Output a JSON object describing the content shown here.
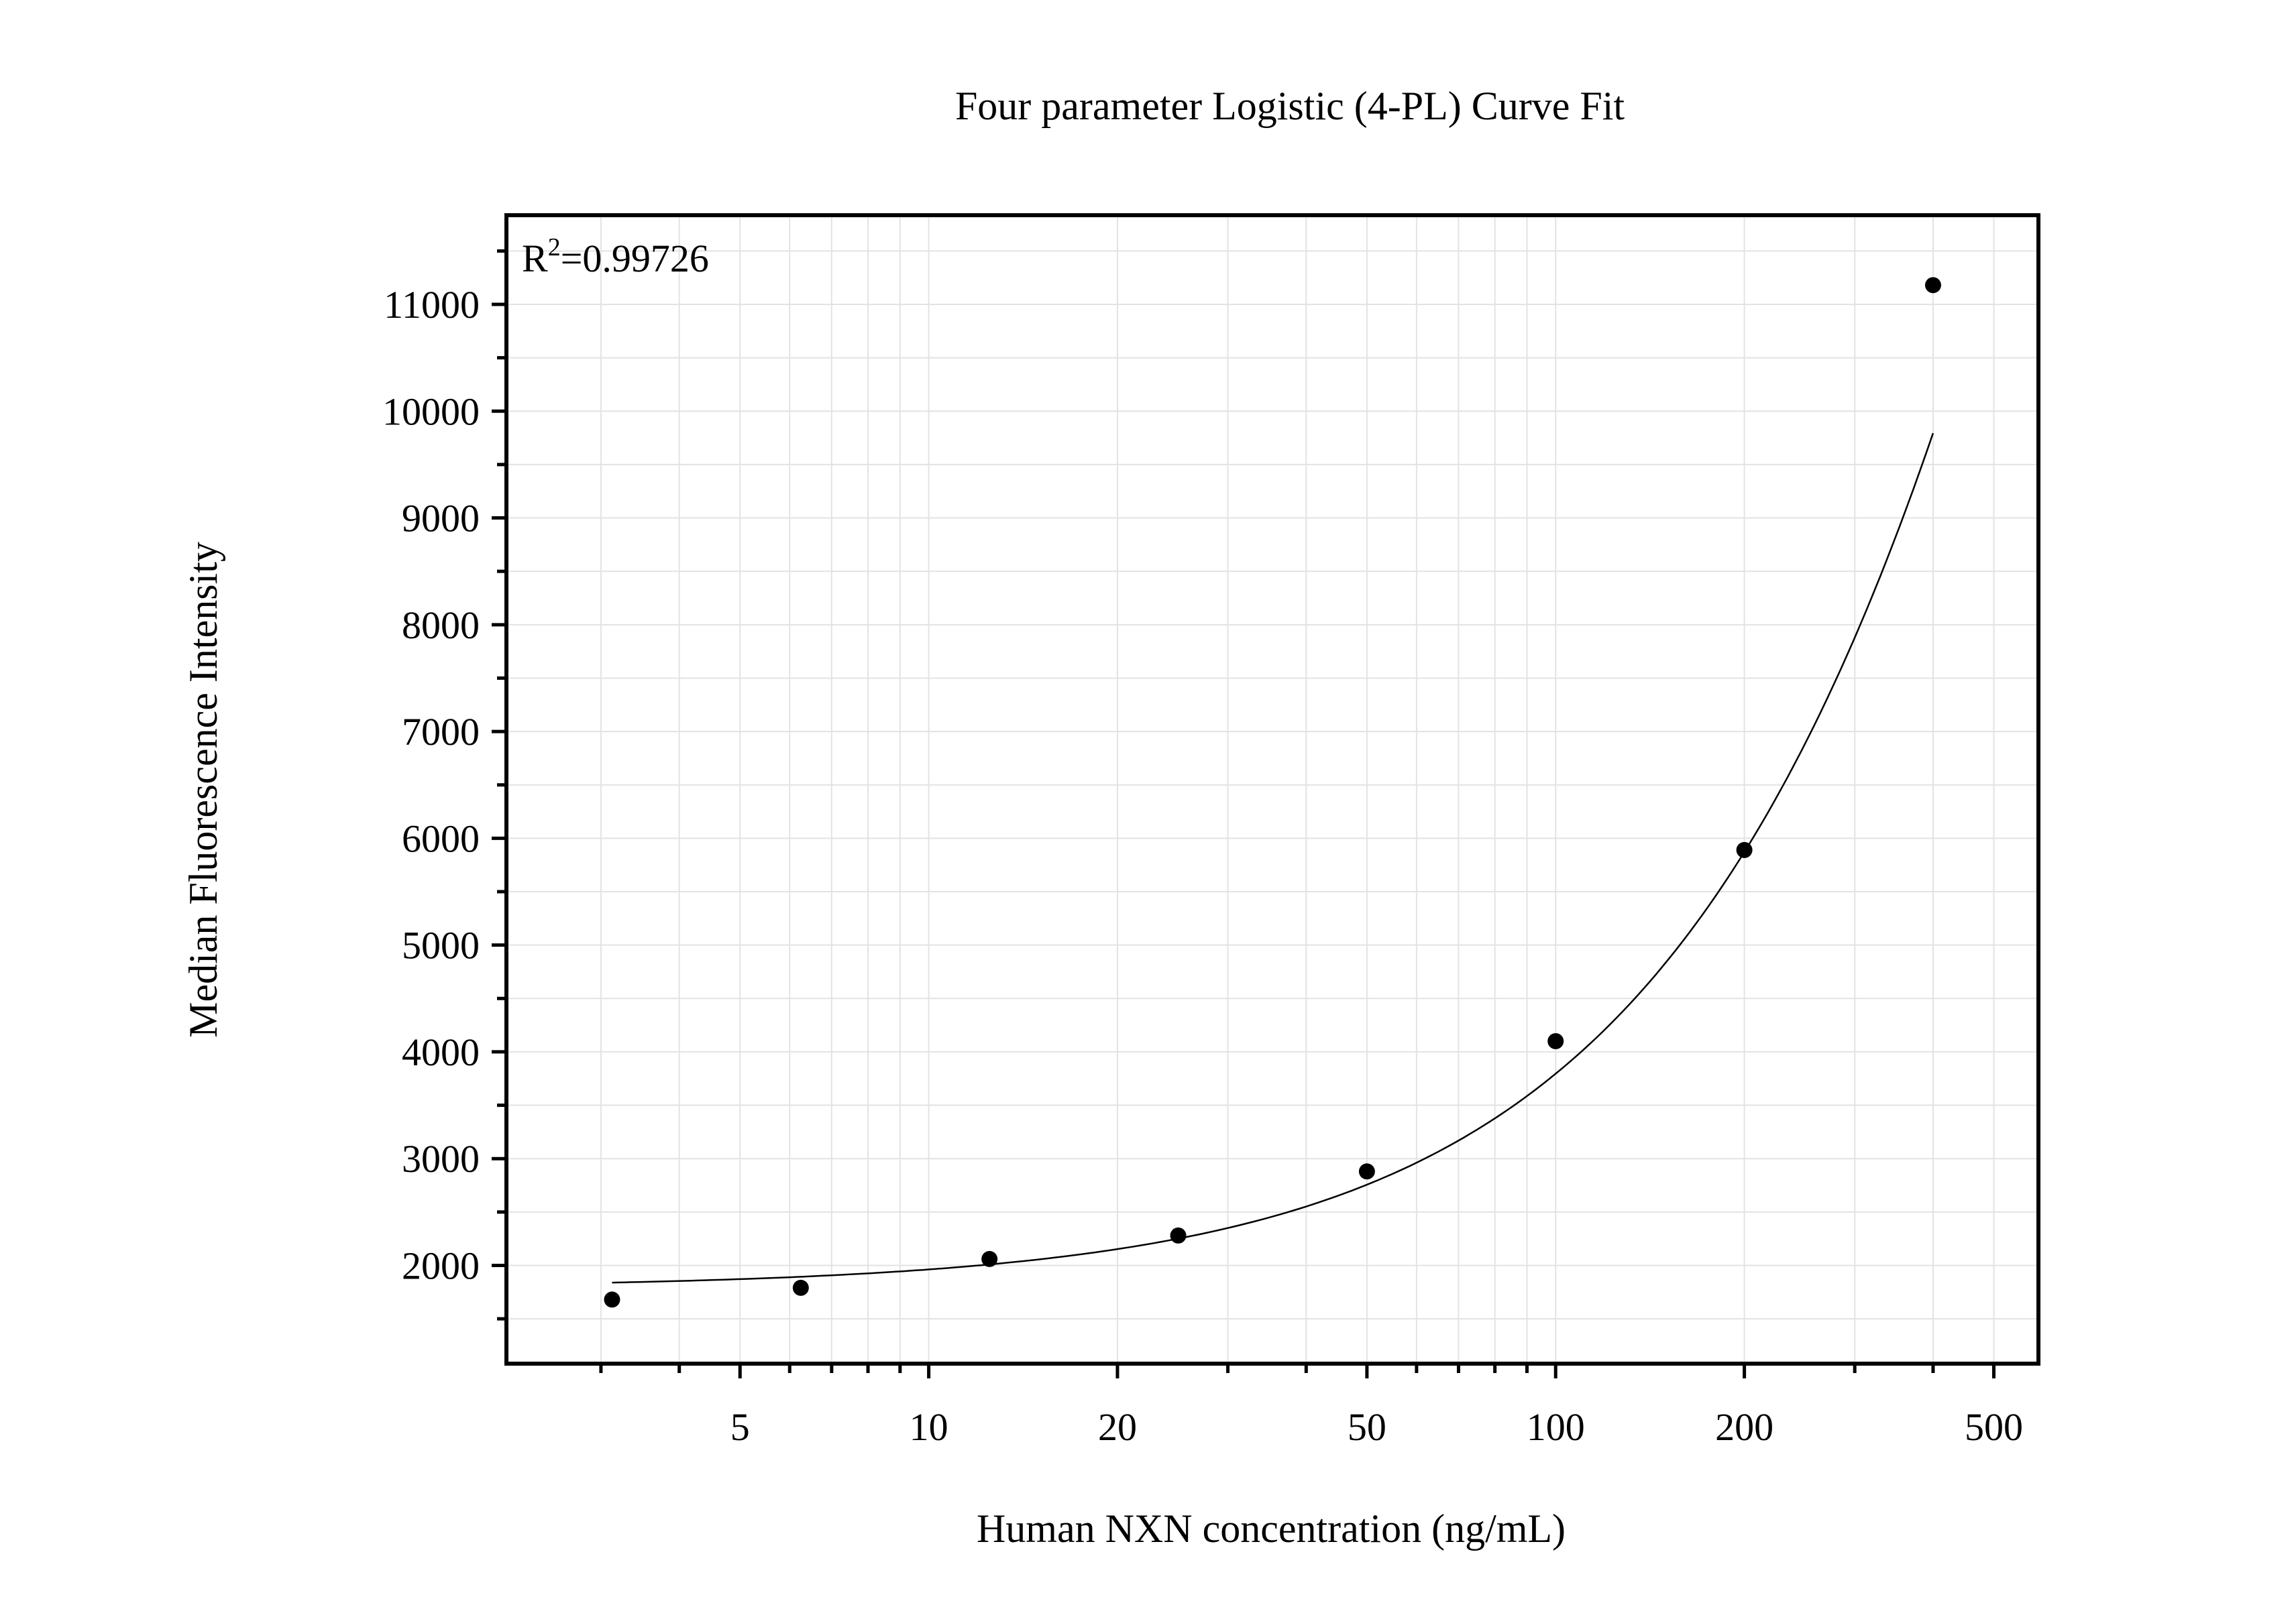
{
  "chart_data": {
    "type": "scatter",
    "title": "Four parameter Logistic (4-PL) Curve Fit",
    "xlabel": "Human NXN concentration (ng/mL)",
    "ylabel": "Median Fluorescence Intensity",
    "x_scale": "log",
    "xlim": [
      2.12,
      589
    ],
    "ylim": [
      1080,
      11835
    ],
    "x_ticks": [
      5,
      10,
      20,
      50,
      100,
      200,
      500
    ],
    "x_tick_labels": [
      "5",
      "10",
      "20",
      "50",
      "100",
      "200",
      "500"
    ],
    "y_ticks": [
      2000,
      3000,
      4000,
      5000,
      6000,
      7000,
      8000,
      9000,
      10000,
      11000
    ],
    "y_tick_labels": [
      "2000",
      "3000",
      "4000",
      "5000",
      "6000",
      "7000",
      "8000",
      "9000",
      "10000",
      "11000"
    ],
    "grid": true,
    "annotation": {
      "r2_prefix": "R",
      "r2_sup": "2",
      "r2_value": "=0.99726"
    },
    "series": [
      {
        "x": [
          3.125,
          6.25,
          12.5,
          25,
          50,
          100,
          200,
          400
        ],
        "y": [
          1680,
          1790,
          2060,
          2280,
          2880,
          4100,
          5890,
          11180
        ],
        "marker": "circle",
        "color": "#000000",
        "fit": "4-PL curve"
      }
    ]
  }
}
